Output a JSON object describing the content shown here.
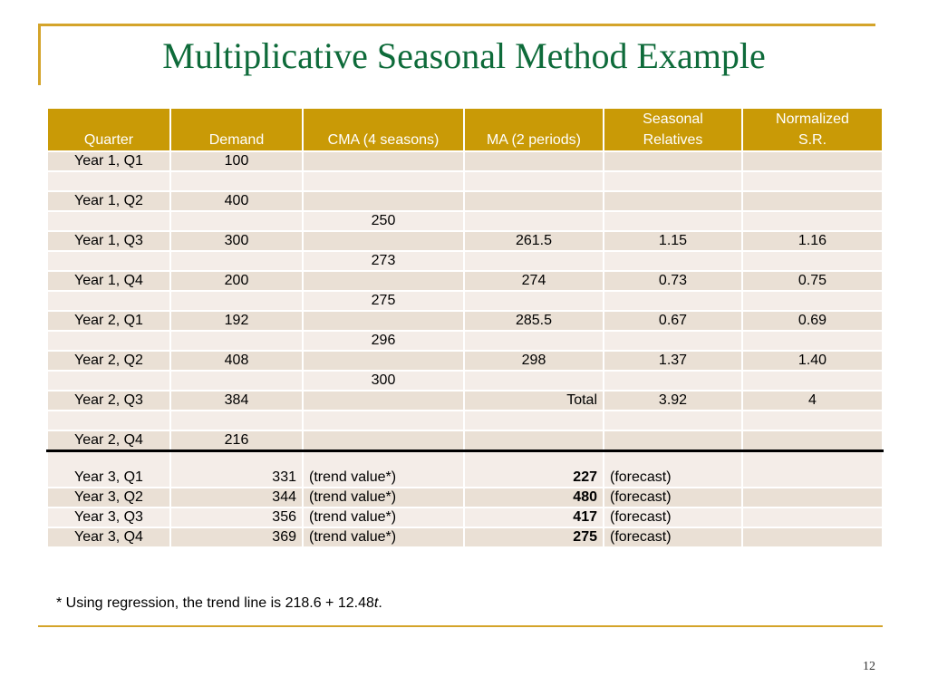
{
  "slide": {
    "title": "Multiplicative Seasonal Method Example",
    "page_number": "12",
    "footnote_prefix": "* Using regression, the trend line is 218.6 + 12.48",
    "footnote_var": "t",
    "footnote_suffix": "."
  },
  "table": {
    "headers": [
      "Quarter",
      "Demand",
      "CMA (4 seasons)",
      "MA (2 periods)",
      "Seasonal\nRelatives",
      "Normalized\nS.R."
    ],
    "rows": [
      [
        "Year 1, Q1",
        "100",
        "",
        "",
        "",
        ""
      ],
      [
        "",
        "",
        "",
        "",
        "",
        ""
      ],
      [
        "Year 1, Q2",
        "400",
        "",
        "",
        "",
        ""
      ],
      [
        "",
        "",
        "250",
        "",
        "",
        ""
      ],
      [
        "Year 1, Q3",
        "300",
        "",
        "261.5",
        "1.15",
        "1.16"
      ],
      [
        "",
        "",
        "273",
        "",
        "",
        ""
      ],
      [
        "Year 1, Q4",
        "200",
        "",
        "274",
        "0.73",
        "0.75"
      ],
      [
        "",
        "",
        "275",
        "",
        "",
        ""
      ],
      [
        "Year 2, Q1",
        "192",
        "",
        "285.5",
        "0.67",
        "0.69"
      ],
      [
        "",
        "",
        "296",
        "",
        "",
        ""
      ],
      [
        "Year 2, Q2",
        "408",
        "",
        "298",
        "1.37",
        "1.40"
      ],
      [
        "",
        "",
        "300",
        "",
        "",
        ""
      ],
      [
        "Year 2, Q3",
        "384",
        "",
        "Total",
        "3.92",
        "4"
      ],
      [
        "",
        "",
        "",
        "",
        "",
        ""
      ],
      [
        "Year 2, Q4",
        "216",
        "",
        "",
        "",
        ""
      ],
      [
        "Year 3, Q1",
        "331",
        "(trend value*)",
        "227",
        "(forecast)",
        ""
      ],
      [
        "Year 3, Q2",
        "344",
        "(trend value*)",
        "480",
        "(forecast)",
        ""
      ],
      [
        "Year 3, Q3",
        "356",
        "(trend value*)",
        "417",
        "(forecast)",
        ""
      ],
      [
        "Year 3, Q4",
        "369",
        "(trend value*)",
        "275",
        "(forecast)",
        ""
      ]
    ]
  },
  "colors": {
    "title": "#0E6B3A",
    "accent_rule": "#D4A42A",
    "header_bg": "#C99A06",
    "row_dark": "#EAE0D5",
    "row_light": "#F4EDE8"
  }
}
